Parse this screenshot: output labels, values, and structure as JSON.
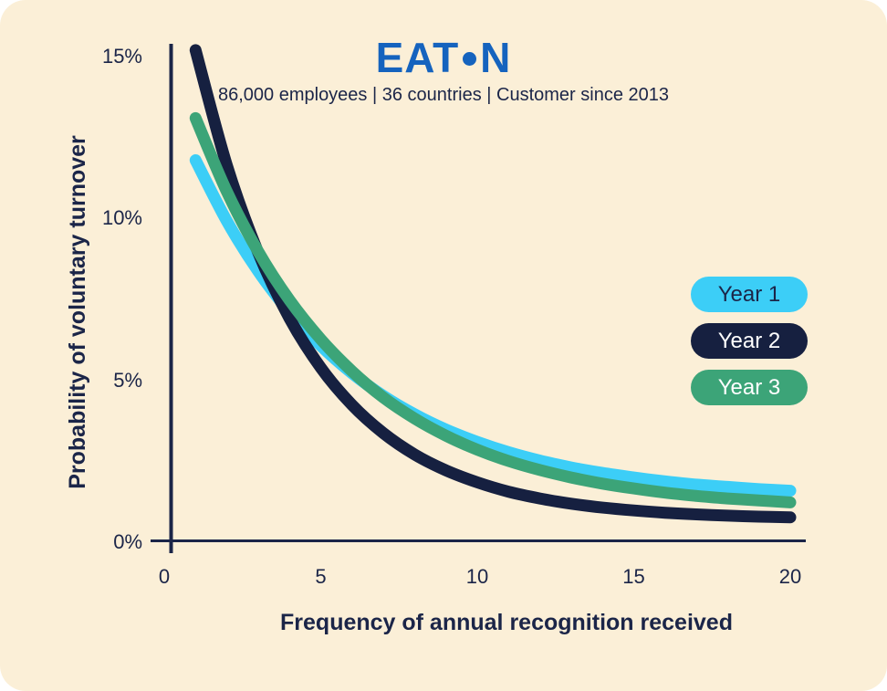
{
  "header": {
    "brand": "EATON",
    "logo": {
      "left": "EAT",
      "dot": "●",
      "right": "N"
    },
    "subtitle": "86,000 employees | 36 countries | Customer since 2013"
  },
  "colors": {
    "background": "#FBEFD7",
    "logo_blue": "#1563BE",
    "text_navy": "#1B2548",
    "axis_navy": "#1B2548",
    "year1_cyan": "#3CCEF7",
    "year2_navy": "#162040",
    "year3_green": "#3CA478",
    "white": "#FFFFFF"
  },
  "chart_data": {
    "type": "line",
    "title": "",
    "xlabel": "Frequency of annual recognition received",
    "ylabel": "Probability of voluntary turnover",
    "xlim": [
      0,
      20
    ],
    "ylim": [
      0,
      15
    ],
    "grid": false,
    "legend_position": "right",
    "x_ticks": [
      {
        "value": 0,
        "label": "0"
      },
      {
        "value": 5,
        "label": "5"
      },
      {
        "value": 10,
        "label": "10"
      },
      {
        "value": 15,
        "label": "15"
      },
      {
        "value": 20,
        "label": "20"
      }
    ],
    "y_ticks": [
      {
        "value": 0,
        "label": "0%"
      },
      {
        "value": 5,
        "label": "5%"
      },
      {
        "value": 10,
        "label": "10%"
      },
      {
        "value": 15,
        "label": "15%"
      }
    ],
    "x": [
      1,
      2,
      3,
      4,
      5,
      6,
      7,
      8,
      9,
      10,
      11,
      12,
      13,
      14,
      15,
      16,
      17,
      18,
      19,
      20
    ],
    "series": [
      {
        "name": "Year 1",
        "color": "#3CCEF7",
        "label_color": "#1B2548",
        "values": [
          11.8,
          9.92,
          8.37,
          7.11,
          6.07,
          5.22,
          4.52,
          3.95,
          3.48,
          3.1,
          2.78,
          2.52,
          2.31,
          2.14,
          2.0,
          1.88,
          1.78,
          1.71,
          1.64,
          1.59
        ]
      },
      {
        "name": "Year 2",
        "color": "#162040",
        "label_color": "#FFFFFF",
        "values": [
          15.2,
          11.64,
          8.95,
          6.92,
          5.39,
          4.24,
          3.37,
          2.71,
          2.22,
          1.85,
          1.56,
          1.35,
          1.19,
          1.07,
          0.98,
          0.91,
          0.86,
          0.82,
          0.79,
          0.77
        ]
      },
      {
        "name": "Year 3",
        "color": "#3CA478",
        "label_color": "#FFFFFF",
        "values": [
          13.1,
          10.83,
          8.98,
          7.48,
          6.27,
          5.28,
          4.47,
          3.82,
          3.29,
          2.86,
          2.51,
          2.23,
          2.0,
          1.81,
          1.66,
          1.53,
          1.43,
          1.35,
          1.29,
          1.23
        ]
      }
    ]
  }
}
